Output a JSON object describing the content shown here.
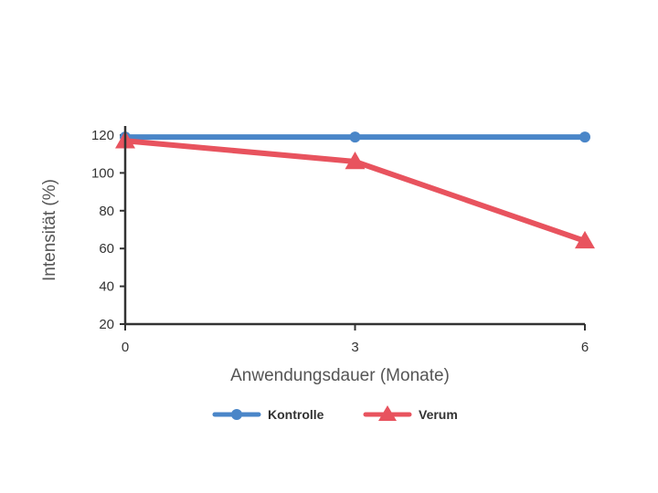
{
  "chart_data": {
    "type": "line",
    "x": [
      0,
      3,
      6
    ],
    "x_ticks": [
      "0",
      "3",
      "6"
    ],
    "y_ticks": [
      "20",
      "40",
      "60",
      "80",
      "100",
      "120"
    ],
    "xlabel": "Anwendungsdauer (Monate)",
    "ylabel": "Intensität (%)",
    "ylim": [
      20,
      120
    ],
    "xlim": [
      0,
      6
    ],
    "grid": false,
    "legend_position": "bottom",
    "series": [
      {
        "name": "Kontrolle",
        "values": [
          119,
          119,
          119
        ],
        "color": "#4a86c8",
        "marker": "circle"
      },
      {
        "name": "Verum",
        "values": [
          117,
          106,
          64
        ],
        "color": "#e8535e",
        "marker": "triangle"
      }
    ]
  }
}
